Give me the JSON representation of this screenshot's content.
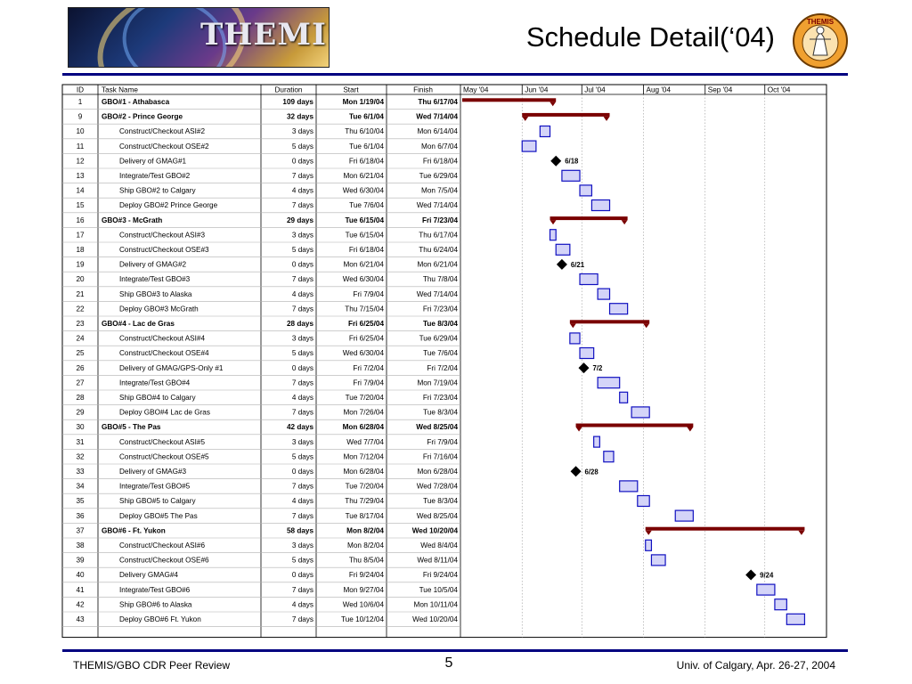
{
  "header": {
    "title": "Schedule Detail(‘04)",
    "logo_text": "THEMIS",
    "seal_text": "THEMIS"
  },
  "footer": {
    "left": "THEMIS/GBO CDR Peer Review",
    "center": "5",
    "right": "Univ. of Calgary, Apr. 26-27, 2004"
  },
  "colors": {
    "rule": "#000080",
    "summary_bar": "#7a0000",
    "task_fill": "#d4d4f8",
    "task_border": "#1010c0",
    "milestone": "#000000"
  },
  "chart_data": {
    "type": "gantt",
    "columns": [
      "ID",
      "Task Name",
      "Duration",
      "Start",
      "Finish"
    ],
    "timeline_months": [
      "May '04",
      "Jun '04",
      "Jul '04",
      "Aug '04",
      "Sep '04",
      "Oct '04"
    ],
    "timeline_range": [
      "2004-05-01",
      "2004-10-31"
    ],
    "rows": [
      {
        "id": "1",
        "name": "GBO#1 - Athabasca",
        "duration": "109 days",
        "start": "Mon 1/19/04",
        "finish": "Thu 6/17/04",
        "type": "summary",
        "s": "2004-01-19",
        "f": "2004-06-17"
      },
      {
        "id": "9",
        "name": "GBO#2 - Prince George",
        "duration": "32 days",
        "start": "Tue 6/1/04",
        "finish": "Wed 7/14/04",
        "type": "summary",
        "s": "2004-06-01",
        "f": "2004-07-14"
      },
      {
        "id": "10",
        "name": "Construct/Checkout ASI#2",
        "duration": "3 days",
        "start": "Thu 6/10/04",
        "finish": "Mon 6/14/04",
        "type": "task",
        "s": "2004-06-10",
        "f": "2004-06-14"
      },
      {
        "id": "11",
        "name": "Construct/Checkout OSE#2",
        "duration": "5 days",
        "start": "Tue 6/1/04",
        "finish": "Mon 6/7/04",
        "type": "task",
        "s": "2004-06-01",
        "f": "2004-06-07"
      },
      {
        "id": "12",
        "name": "Delivery of GMAG#1",
        "duration": "0 days",
        "start": "Fri 6/18/04",
        "finish": "Fri 6/18/04",
        "type": "milestone",
        "s": "2004-06-18",
        "f": "2004-06-18",
        "label": "6/18"
      },
      {
        "id": "13",
        "name": "Integrate/Test GBO#2",
        "duration": "7 days",
        "start": "Mon 6/21/04",
        "finish": "Tue 6/29/04",
        "type": "task",
        "s": "2004-06-21",
        "f": "2004-06-29"
      },
      {
        "id": "14",
        "name": "Ship GBO#2 to Calgary",
        "duration": "4 days",
        "start": "Wed 6/30/04",
        "finish": "Mon 7/5/04",
        "type": "task",
        "s": "2004-06-30",
        "f": "2004-07-05"
      },
      {
        "id": "15",
        "name": "Deploy GBO#2 Prince George",
        "duration": "7 days",
        "start": "Tue 7/6/04",
        "finish": "Wed 7/14/04",
        "type": "task",
        "s": "2004-07-06",
        "f": "2004-07-14"
      },
      {
        "id": "16",
        "name": "GBO#3 - McGrath",
        "duration": "29 days",
        "start": "Tue 6/15/04",
        "finish": "Fri 7/23/04",
        "type": "summary",
        "s": "2004-06-15",
        "f": "2004-07-23"
      },
      {
        "id": "17",
        "name": "Construct/Checkout ASI#3",
        "duration": "3 days",
        "start": "Tue 6/15/04",
        "finish": "Thu 6/17/04",
        "type": "task",
        "s": "2004-06-15",
        "f": "2004-06-17"
      },
      {
        "id": "18",
        "name": "Construct/Checkout OSE#3",
        "duration": "5 days",
        "start": "Fri 6/18/04",
        "finish": "Thu 6/24/04",
        "type": "task",
        "s": "2004-06-18",
        "f": "2004-06-24"
      },
      {
        "id": "19",
        "name": "Delivery of GMAG#2",
        "duration": "0 days",
        "start": "Mon 6/21/04",
        "finish": "Mon 6/21/04",
        "type": "milestone",
        "s": "2004-06-21",
        "f": "2004-06-21",
        "label": "6/21"
      },
      {
        "id": "20",
        "name": "Integrate/Test GBO#3",
        "duration": "7 days",
        "start": "Wed 6/30/04",
        "finish": "Thu 7/8/04",
        "type": "task",
        "s": "2004-06-30",
        "f": "2004-07-08"
      },
      {
        "id": "21",
        "name": "Ship GBO#3 to Alaska",
        "duration": "4 days",
        "start": "Fri 7/9/04",
        "finish": "Wed 7/14/04",
        "type": "task",
        "s": "2004-07-09",
        "f": "2004-07-14"
      },
      {
        "id": "22",
        "name": "Deploy GBO#3 McGrath",
        "duration": "7 days",
        "start": "Thu 7/15/04",
        "finish": "Fri 7/23/04",
        "type": "task",
        "s": "2004-07-15",
        "f": "2004-07-23"
      },
      {
        "id": "23",
        "name": "GBO#4 - Lac de Gras",
        "duration": "28 days",
        "start": "Fri 6/25/04",
        "finish": "Tue 8/3/04",
        "type": "summary",
        "s": "2004-06-25",
        "f": "2004-08-03"
      },
      {
        "id": "24",
        "name": "Construct/Checkout ASI#4",
        "duration": "3 days",
        "start": "Fri 6/25/04",
        "finish": "Tue 6/29/04",
        "type": "task",
        "s": "2004-06-25",
        "f": "2004-06-29"
      },
      {
        "id": "25",
        "name": "Construct/Checkout OSE#4",
        "duration": "5 days",
        "start": "Wed 6/30/04",
        "finish": "Tue 7/6/04",
        "type": "task",
        "s": "2004-06-30",
        "f": "2004-07-06"
      },
      {
        "id": "26",
        "name": "Delivery of GMAG/GPS-Only #1",
        "duration": "0 days",
        "start": "Fri 7/2/04",
        "finish": "Fri 7/2/04",
        "type": "milestone",
        "s": "2004-07-02",
        "f": "2004-07-02",
        "label": "7/2"
      },
      {
        "id": "27",
        "name": "Integrate/Test GBO#4",
        "duration": "7 days",
        "start": "Fri 7/9/04",
        "finish": "Mon 7/19/04",
        "type": "task",
        "s": "2004-07-09",
        "f": "2004-07-19"
      },
      {
        "id": "28",
        "name": "Ship GBO#4 to Calgary",
        "duration": "4 days",
        "start": "Tue 7/20/04",
        "finish": "Fri 7/23/04",
        "type": "task",
        "s": "2004-07-20",
        "f": "2004-07-23"
      },
      {
        "id": "29",
        "name": "Deploy GBO#4 Lac de Gras",
        "duration": "7 days",
        "start": "Mon 7/26/04",
        "finish": "Tue 8/3/04",
        "type": "task",
        "s": "2004-07-26",
        "f": "2004-08-03"
      },
      {
        "id": "30",
        "name": "GBO#5 - The Pas",
        "duration": "42 days",
        "start": "Mon 6/28/04",
        "finish": "Wed 8/25/04",
        "type": "summary",
        "s": "2004-06-28",
        "f": "2004-08-25"
      },
      {
        "id": "31",
        "name": "Construct/Checkout ASI#5",
        "duration": "3 days",
        "start": "Wed 7/7/04",
        "finish": "Fri 7/9/04",
        "type": "task",
        "s": "2004-07-07",
        "f": "2004-07-09"
      },
      {
        "id": "32",
        "name": "Construct/Checkout OSE#5",
        "duration": "5 days",
        "start": "Mon 7/12/04",
        "finish": "Fri 7/16/04",
        "type": "task",
        "s": "2004-07-12",
        "f": "2004-07-16"
      },
      {
        "id": "33",
        "name": "Delivery of GMAG#3",
        "duration": "0 days",
        "start": "Mon 6/28/04",
        "finish": "Mon 6/28/04",
        "type": "milestone",
        "s": "2004-06-28",
        "f": "2004-06-28",
        "label": "6/28"
      },
      {
        "id": "34",
        "name": "Integrate/Test GBO#5",
        "duration": "7 days",
        "start": "Tue 7/20/04",
        "finish": "Wed 7/28/04",
        "type": "task",
        "s": "2004-07-20",
        "f": "2004-07-28"
      },
      {
        "id": "35",
        "name": "Ship GBO#5 to Calgary",
        "duration": "4 days",
        "start": "Thu 7/29/04",
        "finish": "Tue 8/3/04",
        "type": "task",
        "s": "2004-07-29",
        "f": "2004-08-03"
      },
      {
        "id": "36",
        "name": "Deploy GBO#5 The Pas",
        "duration": "7 days",
        "start": "Tue 8/17/04",
        "finish": "Wed 8/25/04",
        "type": "task",
        "s": "2004-08-17",
        "f": "2004-08-25"
      },
      {
        "id": "37",
        "name": "GBO#6 - Ft. Yukon",
        "duration": "58 days",
        "start": "Mon 8/2/04",
        "finish": "Wed 10/20/04",
        "type": "summary",
        "s": "2004-08-02",
        "f": "2004-10-20"
      },
      {
        "id": "38",
        "name": "Construct/Checkout ASI#6",
        "duration": "3 days",
        "start": "Mon 8/2/04",
        "finish": "Wed 8/4/04",
        "type": "task",
        "s": "2004-08-02",
        "f": "2004-08-04"
      },
      {
        "id": "39",
        "name": "Construct/Checkout OSE#6",
        "duration": "5 days",
        "start": "Thu 8/5/04",
        "finish": "Wed 8/11/04",
        "type": "task",
        "s": "2004-08-05",
        "f": "2004-08-11"
      },
      {
        "id": "40",
        "name": "Delivery GMAG#4",
        "duration": "0 days",
        "start": "Fri 9/24/04",
        "finish": "Fri 9/24/04",
        "type": "milestone",
        "s": "2004-09-24",
        "f": "2004-09-24",
        "label": "9/24"
      },
      {
        "id": "41",
        "name": "Integrate/Test GBO#6",
        "duration": "7 days",
        "start": "Mon 9/27/04",
        "finish": "Tue 10/5/04",
        "type": "task",
        "s": "2004-09-27",
        "f": "2004-10-05"
      },
      {
        "id": "42",
        "name": "Ship GBO#6 to Alaska",
        "duration": "4 days",
        "start": "Wed 10/6/04",
        "finish": "Mon 10/11/04",
        "type": "task",
        "s": "2004-10-06",
        "f": "2004-10-11"
      },
      {
        "id": "43",
        "name": "Deploy GBO#6 Ft. Yukon",
        "duration": "7 days",
        "start": "Tue 10/12/04",
        "finish": "Wed 10/20/04",
        "type": "task",
        "s": "2004-10-12",
        "f": "2004-10-20"
      }
    ]
  }
}
